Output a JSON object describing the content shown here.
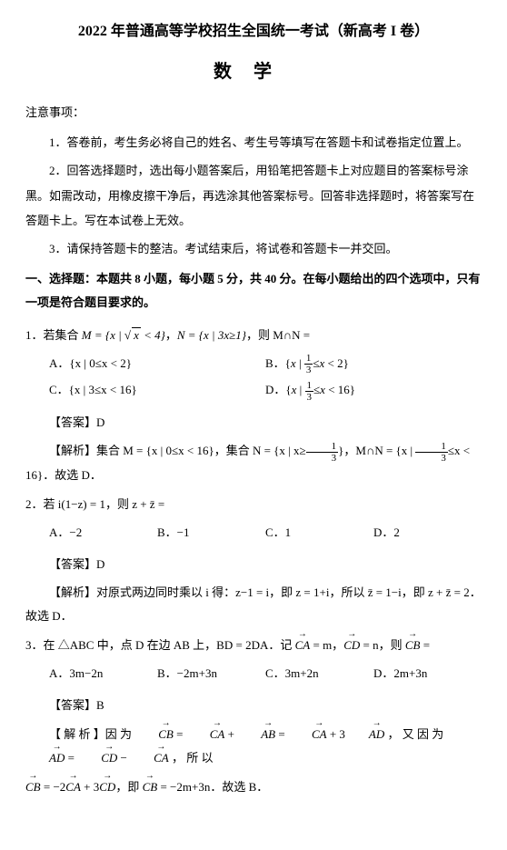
{
  "title_main": "2022 年普通高等学校招生全国统一考试（新高考 I 卷）",
  "title_sub": "数学",
  "notice_head": "注意事项：",
  "notices": [
    "1．答卷前，考生务必将自己的姓名、考生号等填写在答题卡和试卷指定位置上。",
    "2．回答选择题时，选出每小题答案后，用铅笔把答题卡上对应题目的答案标号涂黑。如需改动，用橡皮擦干净后，再选涂其他答案标号。回答非选择题时，将答案写在答题卡上。写在本试卷上无效。",
    "3．请保持答题卡的整洁。考试结束后，将试卷和答题卡一并交回。"
  ],
  "section_head": "一、选择题：本题共 8 小题，每小题 5 分，共 40 分。在每小题给出的四个选项中，只有一项是符合题目要求的。",
  "q1": {
    "stem_pre": "1．若集合 ",
    "stem_mid": "，",
    "stem_post": "，则 M∩N =",
    "optA": "A．{x | 0≤x < 2}",
    "optC": "C．{x | 3≤x < 16}",
    "ans": "【答案】D",
    "expl_pre": "【解析】集合 M = {x | 0≤x < 16}，集合 N = {x | x≥",
    "expl_mid": "}，M∩N = {x | ",
    "expl_post": "≤x < 16}．故选 D．"
  },
  "q2": {
    "stem": "2．若 i(1−z) = 1，则 z + z̄ =",
    "optA": "A．−2",
    "optB": "B．−1",
    "optC": "C．1",
    "optD": "D．2",
    "ans": "【答案】D",
    "expl": "【解析】对原式两边同时乘以 i 得：z−1 = i，即 z = 1+i，所以 z̄ = 1−i，即 z + z̄ = 2．故选 D．"
  },
  "q3": {
    "stem_pre": "3．在 △ABC 中，点 D 在边 AB 上，BD = 2DA．记 ",
    "stem_mid1": " = m，",
    "stem_mid2": " = n，则 ",
    "stem_post": " =",
    "optA": "A．3m−2n",
    "optB": "B．−2m+3n",
    "optC": "C．3m+2n",
    "optD": "D．2m+3n",
    "ans": "【答案】B",
    "expl_pre": "【 解 析 】因 为 ",
    "expl_mid1": " ， 又 因 为 ",
    "expl_mid2": " ， 所 以",
    "expl_line2_pre": "",
    "expl_line2_mid": "，即 ",
    "expl_line2_post": " = −2m+3n．故选 B．"
  },
  "frac13": {
    "n": "1",
    "d": "3"
  }
}
